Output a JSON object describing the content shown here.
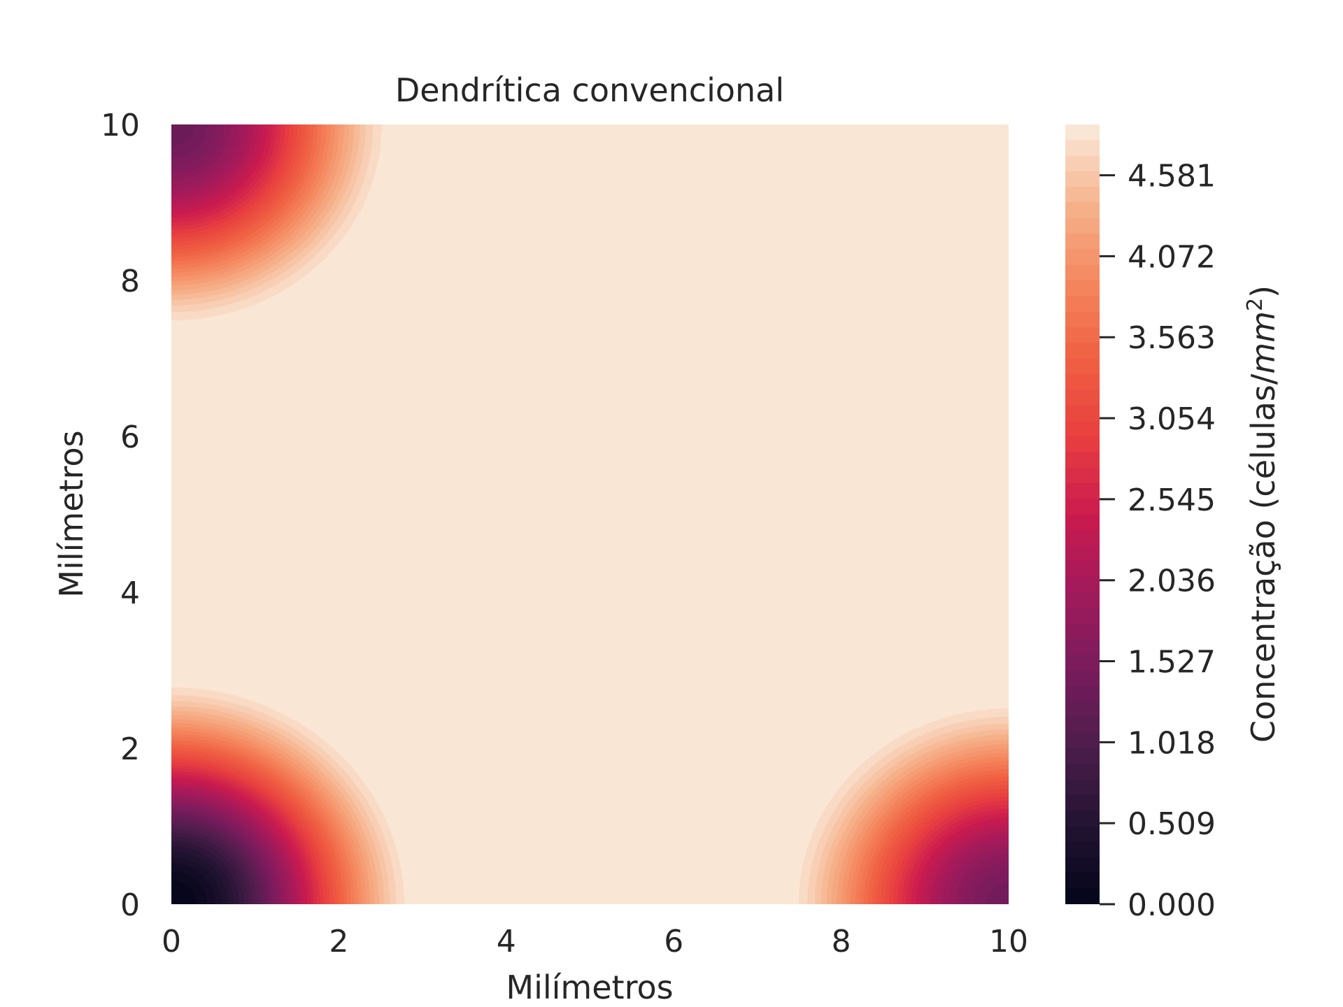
{
  "chart_data": {
    "type": "heatmap",
    "title": "Dendrítica convencional",
    "xlabel": "Milímetros",
    "ylabel": "Milímetros",
    "xlim": [
      0,
      10
    ],
    "ylim": [
      0,
      10
    ],
    "x_ticks": [
      "0",
      "2",
      "4",
      "6",
      "8",
      "10"
    ],
    "y_ticks": [
      "0",
      "2",
      "4",
      "6",
      "8",
      "10"
    ],
    "grid": false,
    "plot_kind": "filled-contour",
    "colormap": "rocket",
    "colorbar": {
      "label_prefix": "Concentração (células/",
      "label_unit": "mm",
      "label_sup": "2",
      "label_suffix": ")",
      "range": [
        0,
        4.9
      ],
      "ticks": [
        {
          "value": 0.0,
          "label": "0.000"
        },
        {
          "value": 0.509,
          "label": "0.509"
        },
        {
          "value": 1.018,
          "label": "1.018"
        },
        {
          "value": 1.527,
          "label": "1.527"
        },
        {
          "value": 2.036,
          "label": "2.036"
        },
        {
          "value": 2.545,
          "label": "2.545"
        },
        {
          "value": 3.054,
          "label": "3.054"
        },
        {
          "value": 3.563,
          "label": "3.563"
        },
        {
          "value": 4.072,
          "label": "4.072"
        },
        {
          "value": 4.581,
          "label": "4.581"
        }
      ]
    },
    "field": {
      "description_free": true,
      "wells": [
        {
          "x": 0,
          "y": 0,
          "depth": 4.9,
          "radius": 3.0
        },
        {
          "x": 0,
          "y": 10,
          "depth": 3.6,
          "radius": 2.75
        },
        {
          "x": 10,
          "y": 0,
          "depth": 3.5,
          "radius": 2.75
        }
      ],
      "saturation": 4.9
    },
    "colormap_stops": [
      [
        0.0,
        "#03051a"
      ],
      [
        0.1,
        "#221331"
      ],
      [
        0.2,
        "#4c1d4b"
      ],
      [
        0.3,
        "#781c5d"
      ],
      [
        0.4,
        "#a11a5b"
      ],
      [
        0.5,
        "#cb1b4f"
      ],
      [
        0.6,
        "#e83f3f"
      ],
      [
        0.7,
        "#f06043"
      ],
      [
        0.8,
        "#f4885f"
      ],
      [
        0.9,
        "#f6b48e"
      ],
      [
        1.0,
        "#faebdd"
      ]
    ]
  }
}
